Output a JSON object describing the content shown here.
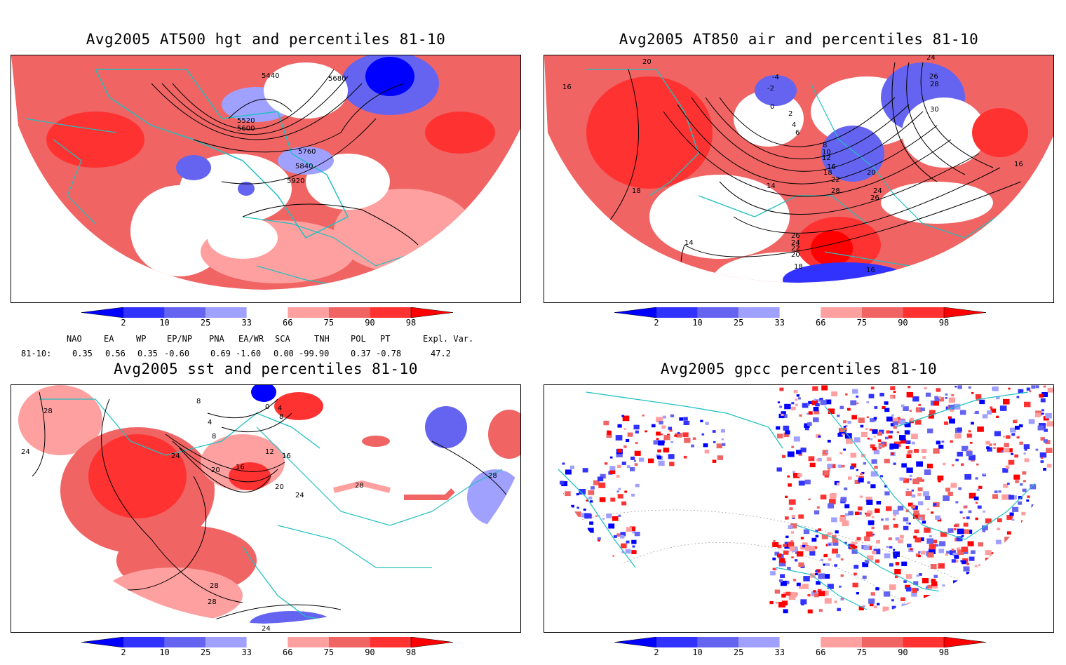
{
  "panels": [
    {
      "title": "Avg2005 AT500 hgt and percentiles 81-10",
      "contour_labels": [
        "5440",
        "5680",
        "5520",
        "5600",
        "5760",
        "5840",
        "5920"
      ]
    },
    {
      "title": "Avg2005 AT850 air and percentiles 81-10",
      "contour_labels": [
        "20",
        "16",
        "-4",
        "-2",
        "0",
        "2",
        "4",
        "6",
        "8",
        "10",
        "12",
        "14",
        "16",
        "18",
        "20",
        "22",
        "24",
        "26",
        "28",
        "30",
        "18",
        "16",
        "24",
        "26",
        "28",
        "26",
        "24",
        "22",
        "20",
        "18",
        "16",
        "14"
      ]
    },
    {
      "title": "Avg2005 sst and percentiles 81-10",
      "contour_labels": [
        "28",
        "24",
        "8",
        "0",
        "4",
        "8",
        "4",
        "8",
        "12",
        "24",
        "20",
        "16",
        "16",
        "20",
        "28",
        "24",
        "28",
        "28",
        "24",
        "28"
      ]
    },
    {
      "title": "Avg2005 gpcc percentiles 81-10",
      "contour_labels": []
    }
  ],
  "colorbar": {
    "labels": [
      "2",
      "10",
      "25",
      "33",
      "66",
      "75",
      "90",
      "98"
    ],
    "colors": {
      "darkblue": "#0000ff",
      "blue": "#3232ff",
      "medblue": "#6464f0",
      "lightblue": "#a0a0ff",
      "lightred": "#ffa0a0",
      "medred": "#f06464",
      "red": "#ff3232",
      "darkred": "#ff0000",
      "coast": "#21c1c1"
    }
  },
  "indices": {
    "headers": [
      "NAO",
      "EA",
      "WP",
      "EP/NP",
      "PNA",
      "EA/WR",
      "SCA",
      "TNH",
      "POL",
      "PT",
      "Expl. Var."
    ],
    "row_label": "81-10:",
    "values": [
      "0.35",
      "0.56",
      "0.35",
      "-0.60",
      "0.69",
      "-1.60",
      "0.00",
      "-99.90",
      "0.37",
      "-0.78",
      "47.2"
    ]
  }
}
